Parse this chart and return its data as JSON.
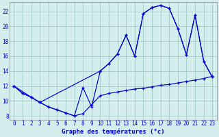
{
  "title": "Graphe des températures (°c)",
  "bg_color": "#d4eeed",
  "grid_color": "#aacccc",
  "line_color": "#0000cc",
  "xlim": [
    -0.5,
    23.5
  ],
  "ylim": [
    7.5,
    23.2
  ],
  "xticks": [
    0,
    1,
    2,
    3,
    4,
    5,
    6,
    7,
    8,
    9,
    10,
    11,
    12,
    13,
    14,
    15,
    16,
    17,
    18,
    19,
    20,
    21,
    22,
    23
  ],
  "yticks": [
    8,
    10,
    12,
    14,
    16,
    18,
    20,
    22
  ],
  "curve_dip_x": [
    0,
    1,
    2,
    3,
    4,
    5,
    6,
    7,
    8,
    9,
    10,
    11,
    12,
    13,
    14,
    15,
    16,
    17,
    18,
    19,
    20,
    21,
    22,
    23
  ],
  "curve_dip_y": [
    12.0,
    11.0,
    10.5,
    9.8,
    9.2,
    8.8,
    8.4,
    8.0,
    8.3,
    9.5,
    10.7,
    11.0,
    11.2,
    11.4,
    11.6,
    11.7,
    11.9,
    12.1,
    12.2,
    12.4,
    12.6,
    12.8,
    13.0,
    13.3
  ],
  "curve_main_x": [
    0,
    1,
    2,
    3,
    4,
    5,
    6,
    7,
    8,
    9,
    10,
    11,
    12,
    13,
    14,
    15,
    16,
    17,
    18,
    19,
    20,
    21,
    22,
    23
  ],
  "curve_main_y": [
    12.0,
    11.0,
    10.5,
    9.8,
    9.2,
    8.8,
    8.4,
    8.0,
    11.8,
    9.2,
    14.0,
    15.0,
    16.3,
    18.8,
    16.0,
    21.7,
    22.5,
    22.8,
    22.4,
    19.7,
    16.2,
    21.5,
    15.3,
    13.2
  ],
  "curve_top_x": [
    0,
    2,
    3,
    10,
    11,
    12,
    13,
    14,
    15,
    16,
    17,
    18,
    19,
    20,
    21,
    22,
    23
  ],
  "curve_top_y": [
    12.0,
    10.5,
    9.8,
    14.0,
    15.0,
    16.3,
    18.8,
    16.0,
    21.7,
    22.5,
    22.8,
    22.4,
    19.7,
    16.2,
    21.5,
    15.3,
    13.2
  ]
}
